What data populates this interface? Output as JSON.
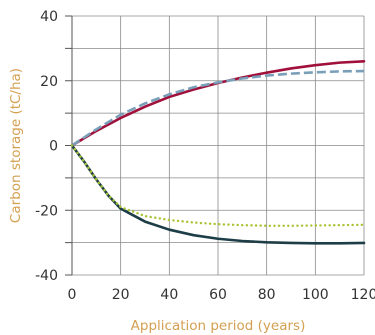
{
  "chart_data": {
    "type": "line",
    "title": "",
    "xlabel": "Application period (years)",
    "ylabel": "Carbon storage (tC/ha)",
    "xlim": [
      0,
      120
    ],
    "ylim": [
      -40,
      40
    ],
    "xticks": [
      0,
      20,
      40,
      60,
      80,
      100,
      120
    ],
    "yticks": [
      -40,
      -20,
      0,
      20,
      40
    ],
    "grid": true,
    "legend": "none",
    "colors": {
      "axis_title": "#d4a052",
      "grid": "#8a8a8a",
      "axis": "#555555"
    },
    "series": [
      {
        "color": "#a0103a",
        "style": "solid",
        "x": [
          0,
          10,
          20,
          30,
          40,
          50,
          60,
          70,
          80,
          90,
          100,
          110,
          120
        ],
        "y": [
          0,
          4.5,
          8.5,
          12,
          15,
          17.3,
          19.3,
          21,
          22.5,
          23.8,
          24.8,
          25.6,
          26
        ]
      },
      {
        "color": "#7a9fb8",
        "style": "dashed",
        "x": [
          0,
          10,
          20,
          30,
          40,
          50,
          60,
          70,
          80,
          90,
          100,
          110,
          120
        ],
        "y": [
          0,
          5,
          9.5,
          13,
          15.8,
          18,
          19.5,
          20.7,
          21.6,
          22.2,
          22.6,
          22.9,
          23
        ]
      },
      {
        "color": "#1d3d47",
        "style": "solid",
        "x": [
          0,
          5,
          10,
          15,
          20,
          30,
          40,
          50,
          60,
          70,
          80,
          90,
          100,
          110,
          120
        ],
        "y": [
          0,
          -5,
          -10.5,
          -15.5,
          -19.5,
          -23.5,
          -26,
          -27.7,
          -28.8,
          -29.5,
          -29.9,
          -30.1,
          -30.2,
          -30.2,
          -30.1
        ]
      },
      {
        "color": "#a8c432",
        "style": "dotted",
        "x": [
          0,
          5,
          10,
          15,
          20,
          30,
          40,
          50,
          60,
          70,
          80,
          90,
          100,
          110,
          120
        ],
        "y": [
          0,
          -5,
          -10.5,
          -15.5,
          -19,
          -21.8,
          -23,
          -23.8,
          -24.3,
          -24.6,
          -24.8,
          -24.8,
          -24.7,
          -24.6,
          -24.5
        ]
      }
    ]
  }
}
